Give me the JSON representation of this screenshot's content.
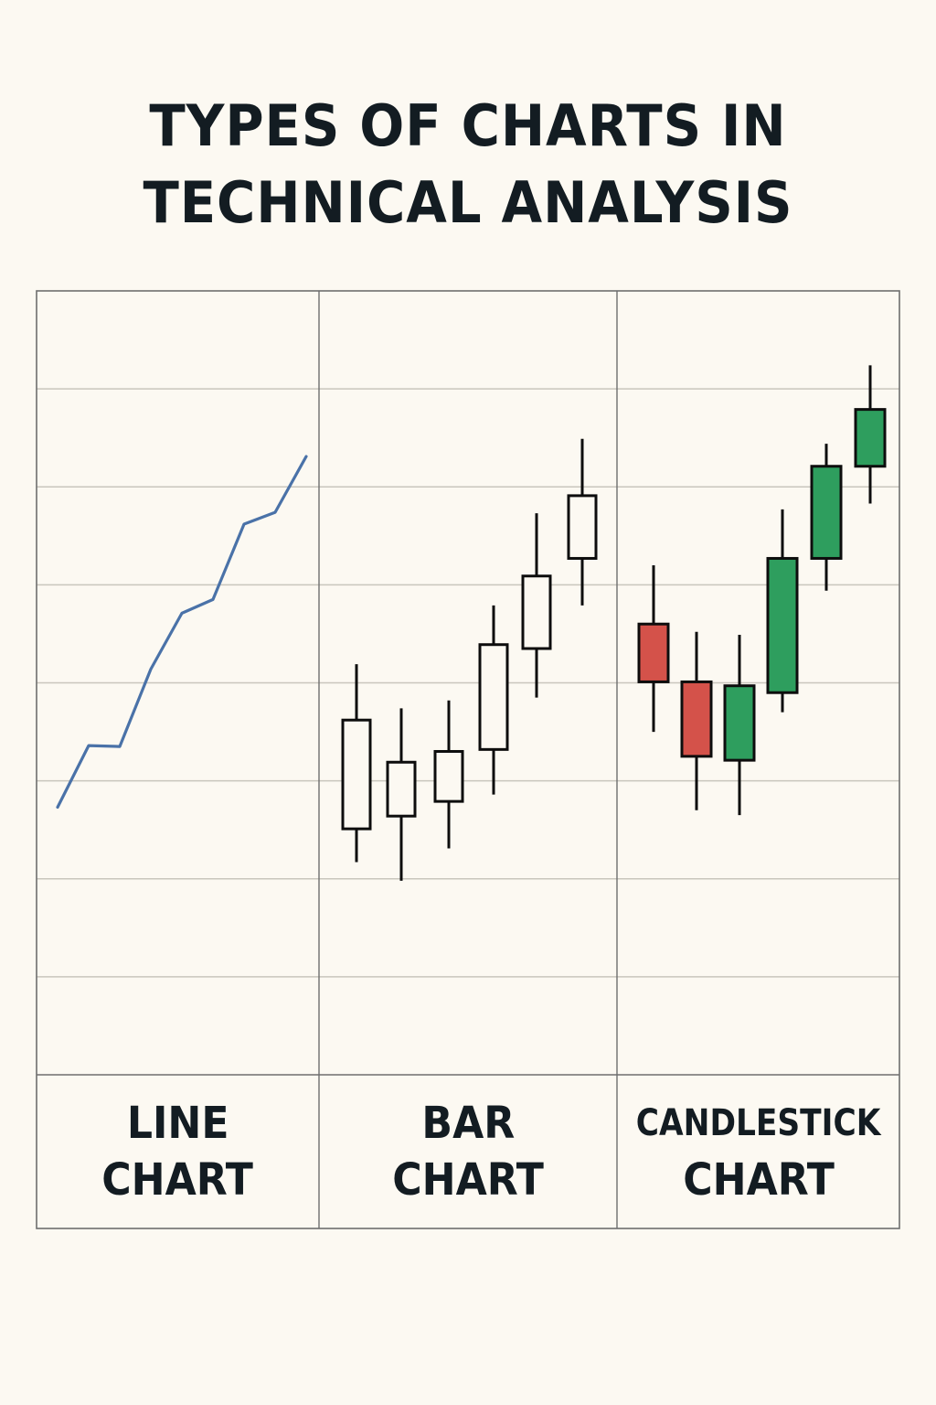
{
  "title": {
    "line1": "TYPES OF CHARTS IN",
    "line2": "TECHNICAL ANALYSIS"
  },
  "colors": {
    "background": "#fcf9f2",
    "frame": "#6e6e6e",
    "gridline": "#c9c6bd",
    "text": "#131c22",
    "line_series": "#4a72a8",
    "bar_outline": "#0d0d0d",
    "bullish": "#2e9e5e",
    "bearish": "#d4524a"
  },
  "panels": [
    {
      "id": "line",
      "label_line1": "LINE",
      "label_line2": "CHART"
    },
    {
      "id": "bar",
      "label_line1": "BAR",
      "label_line2": "CHART"
    },
    {
      "id": "candlestick",
      "label_line1": "CANDLESTICK",
      "label_line2": "CHART"
    }
  ],
  "chart_data": [
    {
      "type": "line",
      "title": "LINE CHART",
      "xlabel": "",
      "ylabel": "",
      "grid": true,
      "ylim": [
        0,
        80
      ],
      "x": [
        1,
        2,
        3,
        4,
        5,
        6,
        7,
        8,
        9
      ],
      "values": [
        27.3,
        33.6,
        33.5,
        41.4,
        47.1,
        48.5,
        56.2,
        57.4,
        63.1
      ]
    },
    {
      "type": "bar",
      "subtype": "ohlc",
      "title": "BAR CHART",
      "xlabel": "",
      "ylabel": "",
      "grid": true,
      "ylim": [
        0,
        80
      ],
      "x": [
        1,
        2,
        3,
        4,
        5,
        6
      ],
      "high": [
        41.9,
        37.4,
        38.2,
        47.9,
        57.3,
        64.9
      ],
      "upper": [
        36.2,
        31.9,
        33.0,
        43.9,
        50.9,
        59.1
      ],
      "lower": [
        25.1,
        26.4,
        27.9,
        33.2,
        43.5,
        52.7
      ],
      "low": [
        21.7,
        19.8,
        23.1,
        28.6,
        38.5,
        47.9
      ]
    },
    {
      "type": "bar",
      "subtype": "candlestick",
      "title": "CANDLESTICK CHART",
      "xlabel": "",
      "ylabel": "",
      "grid": true,
      "ylim": [
        0,
        80
      ],
      "x": [
        1,
        2,
        3,
        4,
        5,
        6
      ],
      "direction": [
        "down",
        "down",
        "up",
        "up",
        "up",
        "up"
      ],
      "open": [
        46.0,
        40.1,
        32.1,
        39.0,
        52.7,
        62.1
      ],
      "close": [
        40.1,
        32.5,
        39.7,
        52.7,
        62.1,
        67.9
      ],
      "high": [
        52.0,
        45.2,
        44.9,
        57.7,
        64.4,
        72.4
      ],
      "low": [
        35.0,
        27.0,
        26.5,
        37.0,
        49.4,
        58.3
      ]
    }
  ]
}
